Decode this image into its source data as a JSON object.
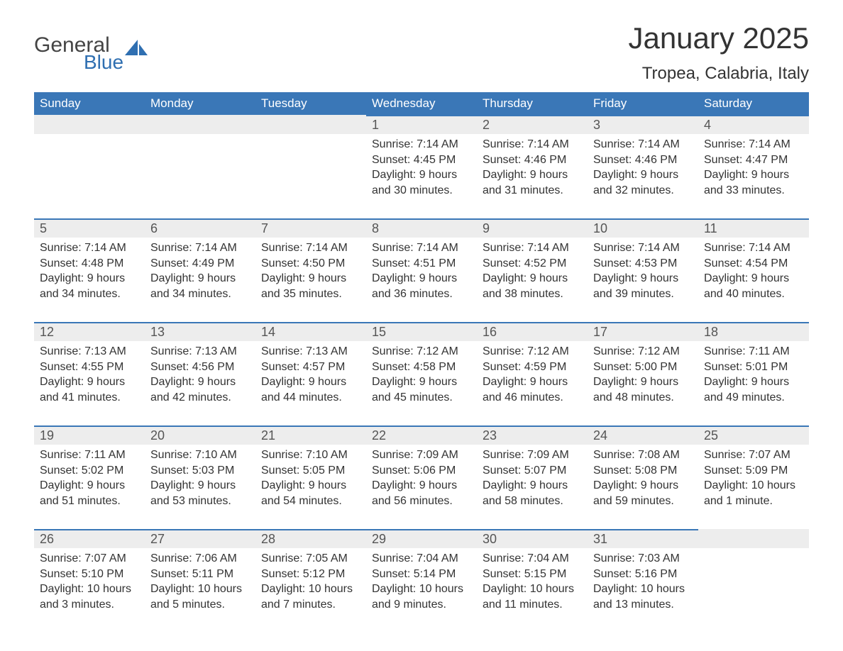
{
  "logo": {
    "general": "General",
    "blue": "Blue"
  },
  "title": "January 2025",
  "location": "Tropea, Calabria, Italy",
  "colors": {
    "header_bg": "#3a77b7",
    "header_text": "#ffffff",
    "daynum_bg": "#ededed",
    "daynum_border": "#3a77b7",
    "text": "#333333",
    "logo_blue": "#2f6fb1"
  },
  "day_names": [
    "Sunday",
    "Monday",
    "Tuesday",
    "Wednesday",
    "Thursday",
    "Friday",
    "Saturday"
  ],
  "weeks": [
    [
      {
        "day": "",
        "lines": [
          "",
          "",
          "",
          ""
        ]
      },
      {
        "day": "",
        "lines": [
          "",
          "",
          "",
          ""
        ]
      },
      {
        "day": "",
        "lines": [
          "",
          "",
          "",
          ""
        ]
      },
      {
        "day": "1",
        "lines": [
          "Sunrise: 7:14 AM",
          "Sunset: 4:45 PM",
          "Daylight: 9 hours",
          "and 30 minutes."
        ]
      },
      {
        "day": "2",
        "lines": [
          "Sunrise: 7:14 AM",
          "Sunset: 4:46 PM",
          "Daylight: 9 hours",
          "and 31 minutes."
        ]
      },
      {
        "day": "3",
        "lines": [
          "Sunrise: 7:14 AM",
          "Sunset: 4:46 PM",
          "Daylight: 9 hours",
          "and 32 minutes."
        ]
      },
      {
        "day": "4",
        "lines": [
          "Sunrise: 7:14 AM",
          "Sunset: 4:47 PM",
          "Daylight: 9 hours",
          "and 33 minutes."
        ]
      }
    ],
    [
      {
        "day": "5",
        "lines": [
          "Sunrise: 7:14 AM",
          "Sunset: 4:48 PM",
          "Daylight: 9 hours",
          "and 34 minutes."
        ]
      },
      {
        "day": "6",
        "lines": [
          "Sunrise: 7:14 AM",
          "Sunset: 4:49 PM",
          "Daylight: 9 hours",
          "and 34 minutes."
        ]
      },
      {
        "day": "7",
        "lines": [
          "Sunrise: 7:14 AM",
          "Sunset: 4:50 PM",
          "Daylight: 9 hours",
          "and 35 minutes."
        ]
      },
      {
        "day": "8",
        "lines": [
          "Sunrise: 7:14 AM",
          "Sunset: 4:51 PM",
          "Daylight: 9 hours",
          "and 36 minutes."
        ]
      },
      {
        "day": "9",
        "lines": [
          "Sunrise: 7:14 AM",
          "Sunset: 4:52 PM",
          "Daylight: 9 hours",
          "and 38 minutes."
        ]
      },
      {
        "day": "10",
        "lines": [
          "Sunrise: 7:14 AM",
          "Sunset: 4:53 PM",
          "Daylight: 9 hours",
          "and 39 minutes."
        ]
      },
      {
        "day": "11",
        "lines": [
          "Sunrise: 7:14 AM",
          "Sunset: 4:54 PM",
          "Daylight: 9 hours",
          "and 40 minutes."
        ]
      }
    ],
    [
      {
        "day": "12",
        "lines": [
          "Sunrise: 7:13 AM",
          "Sunset: 4:55 PM",
          "Daylight: 9 hours",
          "and 41 minutes."
        ]
      },
      {
        "day": "13",
        "lines": [
          "Sunrise: 7:13 AM",
          "Sunset: 4:56 PM",
          "Daylight: 9 hours",
          "and 42 minutes."
        ]
      },
      {
        "day": "14",
        "lines": [
          "Sunrise: 7:13 AM",
          "Sunset: 4:57 PM",
          "Daylight: 9 hours",
          "and 44 minutes."
        ]
      },
      {
        "day": "15",
        "lines": [
          "Sunrise: 7:12 AM",
          "Sunset: 4:58 PM",
          "Daylight: 9 hours",
          "and 45 minutes."
        ]
      },
      {
        "day": "16",
        "lines": [
          "Sunrise: 7:12 AM",
          "Sunset: 4:59 PM",
          "Daylight: 9 hours",
          "and 46 minutes."
        ]
      },
      {
        "day": "17",
        "lines": [
          "Sunrise: 7:12 AM",
          "Sunset: 5:00 PM",
          "Daylight: 9 hours",
          "and 48 minutes."
        ]
      },
      {
        "day": "18",
        "lines": [
          "Sunrise: 7:11 AM",
          "Sunset: 5:01 PM",
          "Daylight: 9 hours",
          "and 49 minutes."
        ]
      }
    ],
    [
      {
        "day": "19",
        "lines": [
          "Sunrise: 7:11 AM",
          "Sunset: 5:02 PM",
          "Daylight: 9 hours",
          "and 51 minutes."
        ]
      },
      {
        "day": "20",
        "lines": [
          "Sunrise: 7:10 AM",
          "Sunset: 5:03 PM",
          "Daylight: 9 hours",
          "and 53 minutes."
        ]
      },
      {
        "day": "21",
        "lines": [
          "Sunrise: 7:10 AM",
          "Sunset: 5:05 PM",
          "Daylight: 9 hours",
          "and 54 minutes."
        ]
      },
      {
        "day": "22",
        "lines": [
          "Sunrise: 7:09 AM",
          "Sunset: 5:06 PM",
          "Daylight: 9 hours",
          "and 56 minutes."
        ]
      },
      {
        "day": "23",
        "lines": [
          "Sunrise: 7:09 AM",
          "Sunset: 5:07 PM",
          "Daylight: 9 hours",
          "and 58 minutes."
        ]
      },
      {
        "day": "24",
        "lines": [
          "Sunrise: 7:08 AM",
          "Sunset: 5:08 PM",
          "Daylight: 9 hours",
          "and 59 minutes."
        ]
      },
      {
        "day": "25",
        "lines": [
          "Sunrise: 7:07 AM",
          "Sunset: 5:09 PM",
          "Daylight: 10 hours",
          "and 1 minute."
        ]
      }
    ],
    [
      {
        "day": "26",
        "lines": [
          "Sunrise: 7:07 AM",
          "Sunset: 5:10 PM",
          "Daylight: 10 hours",
          "and 3 minutes."
        ]
      },
      {
        "day": "27",
        "lines": [
          "Sunrise: 7:06 AM",
          "Sunset: 5:11 PM",
          "Daylight: 10 hours",
          "and 5 minutes."
        ]
      },
      {
        "day": "28",
        "lines": [
          "Sunrise: 7:05 AM",
          "Sunset: 5:12 PM",
          "Daylight: 10 hours",
          "and 7 minutes."
        ]
      },
      {
        "day": "29",
        "lines": [
          "Sunrise: 7:04 AM",
          "Sunset: 5:14 PM",
          "Daylight: 10 hours",
          "and 9 minutes."
        ]
      },
      {
        "day": "30",
        "lines": [
          "Sunrise: 7:04 AM",
          "Sunset: 5:15 PM",
          "Daylight: 10 hours",
          "and 11 minutes."
        ]
      },
      {
        "day": "31",
        "lines": [
          "Sunrise: 7:03 AM",
          "Sunset: 5:16 PM",
          "Daylight: 10 hours",
          "and 13 minutes."
        ]
      },
      {
        "day": "",
        "lines": [
          "",
          "",
          "",
          ""
        ]
      }
    ]
  ]
}
